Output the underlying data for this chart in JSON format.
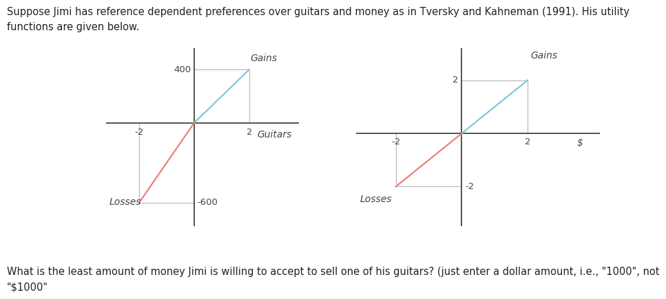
{
  "title_text": "Suppose Jimi has reference dependent preferences over guitars and money as in Tversky and Kahneman (1991). His utility\nfunctions are given below.",
  "question_text": "What is the least amount of money Jimi is willing to accept to sell one of his guitars? (just enter a dollar amount, i.e., \"1000\", not\n\"$1000\"",
  "chart1": {
    "xlabel": "Guitars",
    "gains_label": "Gains",
    "losses_label": "Losses",
    "x_tick_pos": 2,
    "x_tick_neg": -2,
    "y_tick_pos": 400,
    "y_tick_neg": -600,
    "gain_line_x": [
      0,
      2
    ],
    "gain_line_y": [
      0,
      400
    ],
    "loss_line_x": [
      -2,
      0
    ],
    "loss_line_y": [
      -600,
      0
    ]
  },
  "chart2": {
    "xlabel": "$",
    "gains_label": "Gains",
    "losses_label": "Losses",
    "x_tick_pos": 2,
    "x_tick_neg": -2,
    "y_tick_pos": 2,
    "y_tick_neg": -2,
    "gain_line_x": [
      0,
      2
    ],
    "gain_line_y": [
      0,
      2
    ],
    "loss_line_x": [
      -2,
      0
    ],
    "loss_line_y": [
      -2,
      0
    ]
  },
  "gain_color": "#7ec8d8",
  "loss_color": "#e8827a",
  "axis_color": "#444444",
  "grid_color": "#bbbbbb",
  "tick_label_color": "#444444",
  "font_color": "#222222",
  "font_size_title": 10.5,
  "font_size_axis_label": 10,
  "font_size_tick": 9.5,
  "font_size_annotation": 10,
  "font_size_question": 10.5,
  "bg_color": "#ffffff"
}
